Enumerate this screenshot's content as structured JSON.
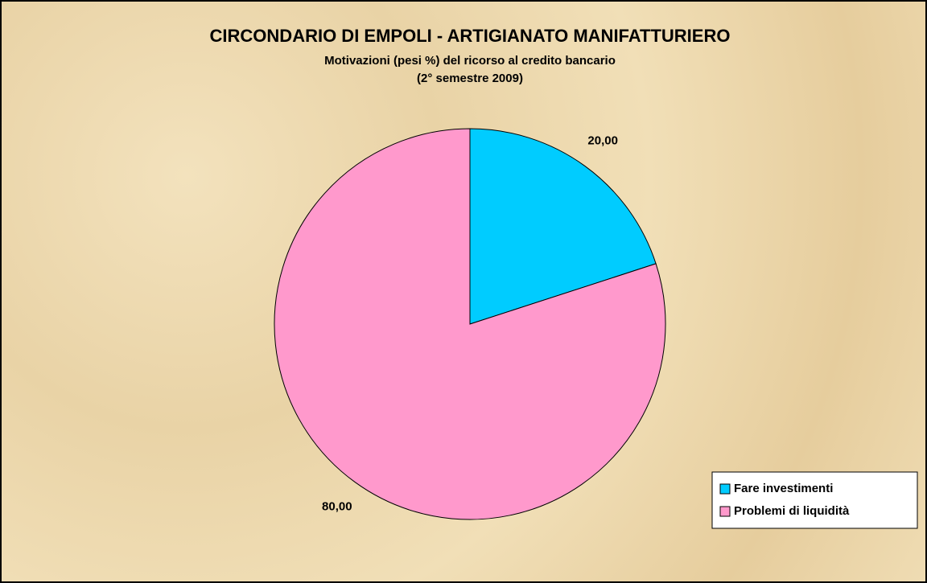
{
  "chart_data": {
    "type": "pie",
    "title": "CIRCONDARIO DI EMPOLI - ARTIGIANATO MANIFATTURIERO",
    "subtitle": [
      "Motivazioni (pesi %) del ricorso al credito bancario",
      "(2° semestre 2009)"
    ],
    "categories": [
      "Fare investimenti",
      "Problemi di liquidità"
    ],
    "values": [
      20,
      80
    ],
    "value_labels": [
      "20,00",
      "80,00"
    ],
    "colors": [
      "#00ccff",
      "#ff99cc"
    ],
    "legend": "lower right"
  }
}
